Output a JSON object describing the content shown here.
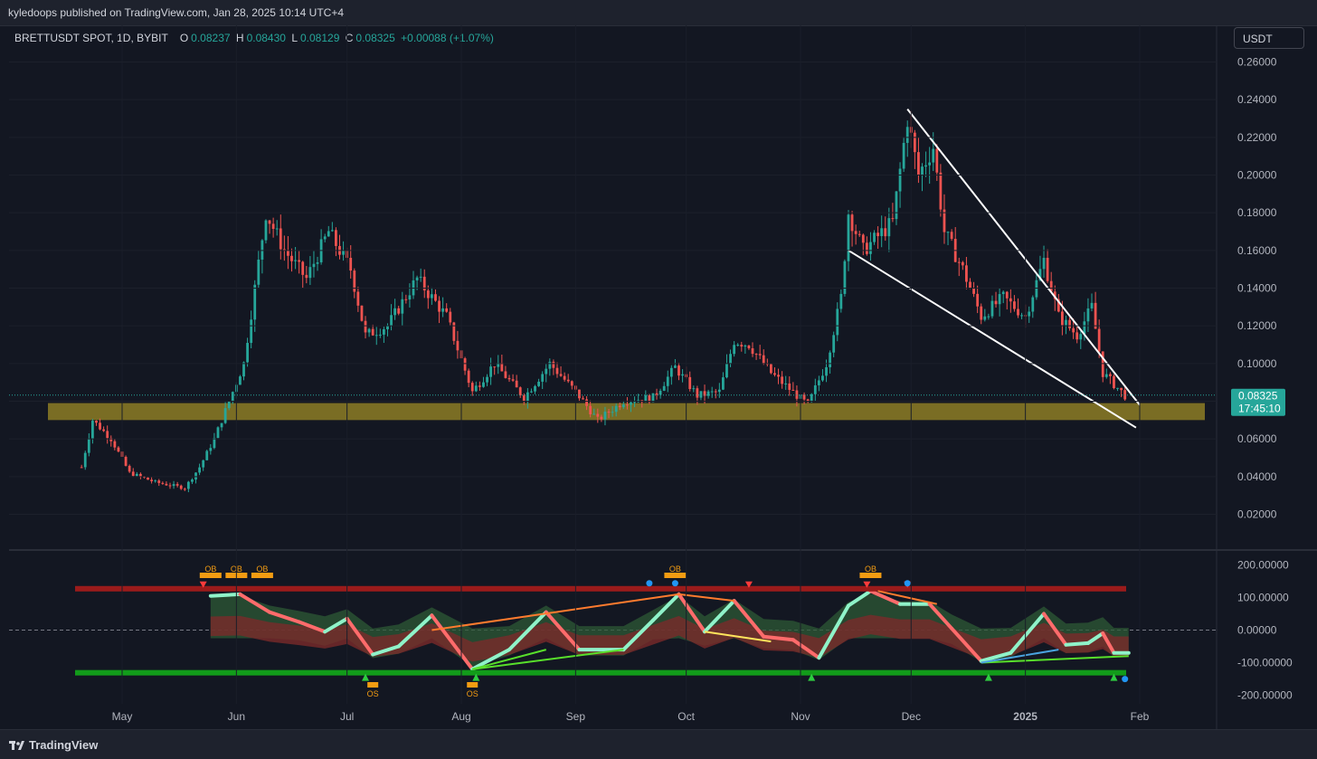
{
  "header": {
    "publisher": "kyledoops published on TradingView.com, Jan 28, 2025 10:14 UTC+4"
  },
  "legend": {
    "symbol": "BRETTUSDT SPOT, 1D, BYBIT",
    "o_label": "O",
    "o_value": "0.08237",
    "h_label": "H",
    "h_value": "0.08430",
    "l_label": "L",
    "l_value": "0.08129",
    "c_label": "C",
    "c_value": "0.08325",
    "change": "+0.00088 (+1.07%)"
  },
  "currency": "USDT",
  "footer": {
    "brand": "TradingView"
  },
  "colors": {
    "up": "#26a69a",
    "down": "#ef5350",
    "zone": "#8d7d24",
    "oversold_line": "#129b1a",
    "overbought_line": "#9b1b1b"
  },
  "chart_data": [
    {
      "type": "candlestick",
      "title": "BRETTUSDT SPOT, 1D, BYBIT",
      "x_ticks": [
        "May",
        "Jun",
        "Jul",
        "Aug",
        "Sep",
        "Oct",
        "Nov",
        "Dec",
        "2025",
        "Feb"
      ],
      "y_ticks": [
        "0.02000",
        "0.04000",
        "0.06000",
        "0.08000",
        "0.10000",
        "0.12000",
        "0.14000",
        "0.16000",
        "0.18000",
        "0.20000",
        "0.22000",
        "0.24000",
        "0.26000"
      ],
      "ylim": [
        0.0,
        0.27
      ],
      "last_price": "0.08325",
      "countdown": "17:45:10",
      "price_path": [
        {
          "date": "2024-04-20",
          "price": 0.045
        },
        {
          "date": "2024-04-23",
          "price": 0.07
        },
        {
          "date": "2024-04-28",
          "price": 0.06
        },
        {
          "date": "2024-05-03",
          "price": 0.042
        },
        {
          "date": "2024-05-10",
          "price": 0.037
        },
        {
          "date": "2024-05-18",
          "price": 0.034
        },
        {
          "date": "2024-05-22",
          "price": 0.045
        },
        {
          "date": "2024-05-26",
          "price": 0.06
        },
        {
          "date": "2024-05-30",
          "price": 0.08
        },
        {
          "date": "2024-06-03",
          "price": 0.1
        },
        {
          "date": "2024-06-06",
          "price": 0.14
        },
        {
          "date": "2024-06-09",
          "price": 0.18
        },
        {
          "date": "2024-06-14",
          "price": 0.16
        },
        {
          "date": "2024-06-20",
          "price": 0.145
        },
        {
          "date": "2024-06-26",
          "price": 0.17
        },
        {
          "date": "2024-07-02",
          "price": 0.15
        },
        {
          "date": "2024-07-06",
          "price": 0.115
        },
        {
          "date": "2024-07-12",
          "price": 0.12
        },
        {
          "date": "2024-07-20",
          "price": 0.145
        },
        {
          "date": "2024-07-28",
          "price": 0.125
        },
        {
          "date": "2024-08-04",
          "price": 0.085
        },
        {
          "date": "2024-08-10",
          "price": 0.1
        },
        {
          "date": "2024-08-18",
          "price": 0.082
        },
        {
          "date": "2024-08-25",
          "price": 0.1
        },
        {
          "date": "2024-09-01",
          "price": 0.085
        },
        {
          "date": "2024-09-07",
          "price": 0.07
        },
        {
          "date": "2024-09-14",
          "price": 0.08
        },
        {
          "date": "2024-09-22",
          "price": 0.082
        },
        {
          "date": "2024-09-28",
          "price": 0.098
        },
        {
          "date": "2024-10-04",
          "price": 0.083
        },
        {
          "date": "2024-10-10",
          "price": 0.085
        },
        {
          "date": "2024-10-14",
          "price": 0.112
        },
        {
          "date": "2024-10-18",
          "price": 0.11
        },
        {
          "date": "2024-10-24",
          "price": 0.095
        },
        {
          "date": "2024-11-03",
          "price": 0.078
        },
        {
          "date": "2024-11-08",
          "price": 0.1
        },
        {
          "date": "2024-11-12",
          "price": 0.135
        },
        {
          "date": "2024-11-14",
          "price": 0.18
        },
        {
          "date": "2024-11-18",
          "price": 0.16
        },
        {
          "date": "2024-11-26",
          "price": 0.175
        },
        {
          "date": "2024-11-30",
          "price": 0.23
        },
        {
          "date": "2024-12-03",
          "price": 0.2
        },
        {
          "date": "2024-12-07",
          "price": 0.215
        },
        {
          "date": "2024-12-10",
          "price": 0.17
        },
        {
          "date": "2024-12-15",
          "price": 0.15
        },
        {
          "date": "2024-12-20",
          "price": 0.125
        },
        {
          "date": "2024-12-26",
          "price": 0.135
        },
        {
          "date": "2025-01-01",
          "price": 0.125
        },
        {
          "date": "2025-01-06",
          "price": 0.155
        },
        {
          "date": "2025-01-10",
          "price": 0.125
        },
        {
          "date": "2025-01-15",
          "price": 0.115
        },
        {
          "date": "2025-01-19",
          "price": 0.13
        },
        {
          "date": "2025-01-22",
          "price": 0.095
        },
        {
          "date": "2025-01-28",
          "price": 0.083
        }
      ],
      "support_zone": {
        "low": 0.07,
        "high": 0.079
      },
      "trendlines": [
        {
          "name": "resistance",
          "from": {
            "date": "2024-11-30",
            "price": 0.235
          },
          "to": {
            "date": "2025-02-01",
            "price": 0.078
          }
        },
        {
          "name": "support",
          "from": {
            "date": "2024-11-14",
            "price": 0.16
          },
          "to": {
            "date": "2025-01-31",
            "price": 0.066
          }
        }
      ]
    },
    {
      "type": "line",
      "title": "",
      "y_ticks": [
        "200.00000",
        "100.00000",
        "0.00000",
        "-100.00000",
        "-200.00000"
      ],
      "ylim": [
        -235,
        235
      ],
      "overbought_level": 127,
      "oversold_level": -131,
      "ob_labels": [
        "OB",
        "OB",
        "OB",
        "OB",
        "OB"
      ],
      "os_labels": [
        "OS",
        "OS"
      ],
      "oscillator": [
        {
          "date": "2024-05-25",
          "value": 105
        },
        {
          "date": "2024-06-02",
          "value": 110
        },
        {
          "date": "2024-06-10",
          "value": 55
        },
        {
          "date": "2024-06-18",
          "value": 25
        },
        {
          "date": "2024-06-25",
          "value": -5
        },
        {
          "date": "2024-07-01",
          "value": 35
        },
        {
          "date": "2024-07-08",
          "value": -75
        },
        {
          "date": "2024-07-15",
          "value": -50
        },
        {
          "date": "2024-07-24",
          "value": 45
        },
        {
          "date": "2024-08-04",
          "value": -120
        },
        {
          "date": "2024-08-14",
          "value": -60
        },
        {
          "date": "2024-08-24",
          "value": 55
        },
        {
          "date": "2024-09-02",
          "value": -60
        },
        {
          "date": "2024-09-14",
          "value": -60
        },
        {
          "date": "2024-09-22",
          "value": 30
        },
        {
          "date": "2024-09-29",
          "value": 110
        },
        {
          "date": "2024-10-06",
          "value": -5
        },
        {
          "date": "2024-10-14",
          "value": 90
        },
        {
          "date": "2024-10-22",
          "value": -20
        },
        {
          "date": "2024-10-30",
          "value": -30
        },
        {
          "date": "2024-11-06",
          "value": -85
        },
        {
          "date": "2024-11-14",
          "value": 75
        },
        {
          "date": "2024-11-20",
          "value": 120
        },
        {
          "date": "2024-11-28",
          "value": 80
        },
        {
          "date": "2024-12-06",
          "value": 80
        },
        {
          "date": "2024-12-12",
          "value": 5
        },
        {
          "date": "2024-12-20",
          "value": -95
        },
        {
          "date": "2024-12-28",
          "value": -70
        },
        {
          "date": "2025-01-06",
          "value": 50
        },
        {
          "date": "2025-01-12",
          "value": -45
        },
        {
          "date": "2025-01-18",
          "value": -40
        },
        {
          "date": "2025-01-22",
          "value": -10
        },
        {
          "date": "2025-01-25",
          "value": -70
        },
        {
          "date": "2025-01-29",
          "value": -70
        }
      ]
    }
  ]
}
